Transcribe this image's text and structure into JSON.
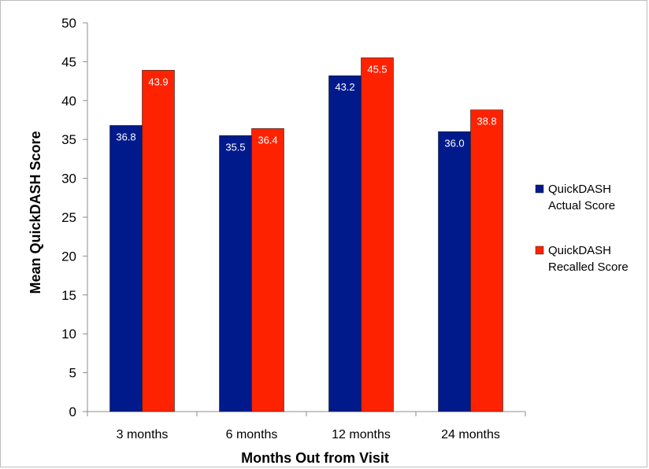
{
  "chart_data": {
    "type": "bar",
    "xlabel": "Months Out from Visit",
    "ylabel": "Mean QuickDASH Score",
    "categories": [
      "3 months",
      "6 months",
      "12 months",
      "24 months"
    ],
    "ylim": [
      0,
      50
    ],
    "yticks": [
      0,
      5,
      10,
      15,
      20,
      25,
      30,
      35,
      40,
      45,
      50
    ],
    "grid": false,
    "legend_position": "right",
    "series": [
      {
        "name": "QuickDASH Actual Score",
        "legend_lines": [
          "QuickDASH",
          "Actual Score"
        ],
        "color": "#001a8c",
        "values": [
          36.8,
          35.5,
          43.2,
          36.0
        ],
        "labels": [
          "36.8",
          "35.5",
          "43.2",
          "36.0"
        ]
      },
      {
        "name": "QuickDASH Recalled Score",
        "legend_lines": [
          "QuickDASH",
          "Recalled Score"
        ],
        "color": "#ff2200",
        "values": [
          43.9,
          36.4,
          45.5,
          38.8
        ],
        "labels": [
          "43.9",
          "36.4",
          "45.5",
          "38.8"
        ]
      }
    ]
  }
}
